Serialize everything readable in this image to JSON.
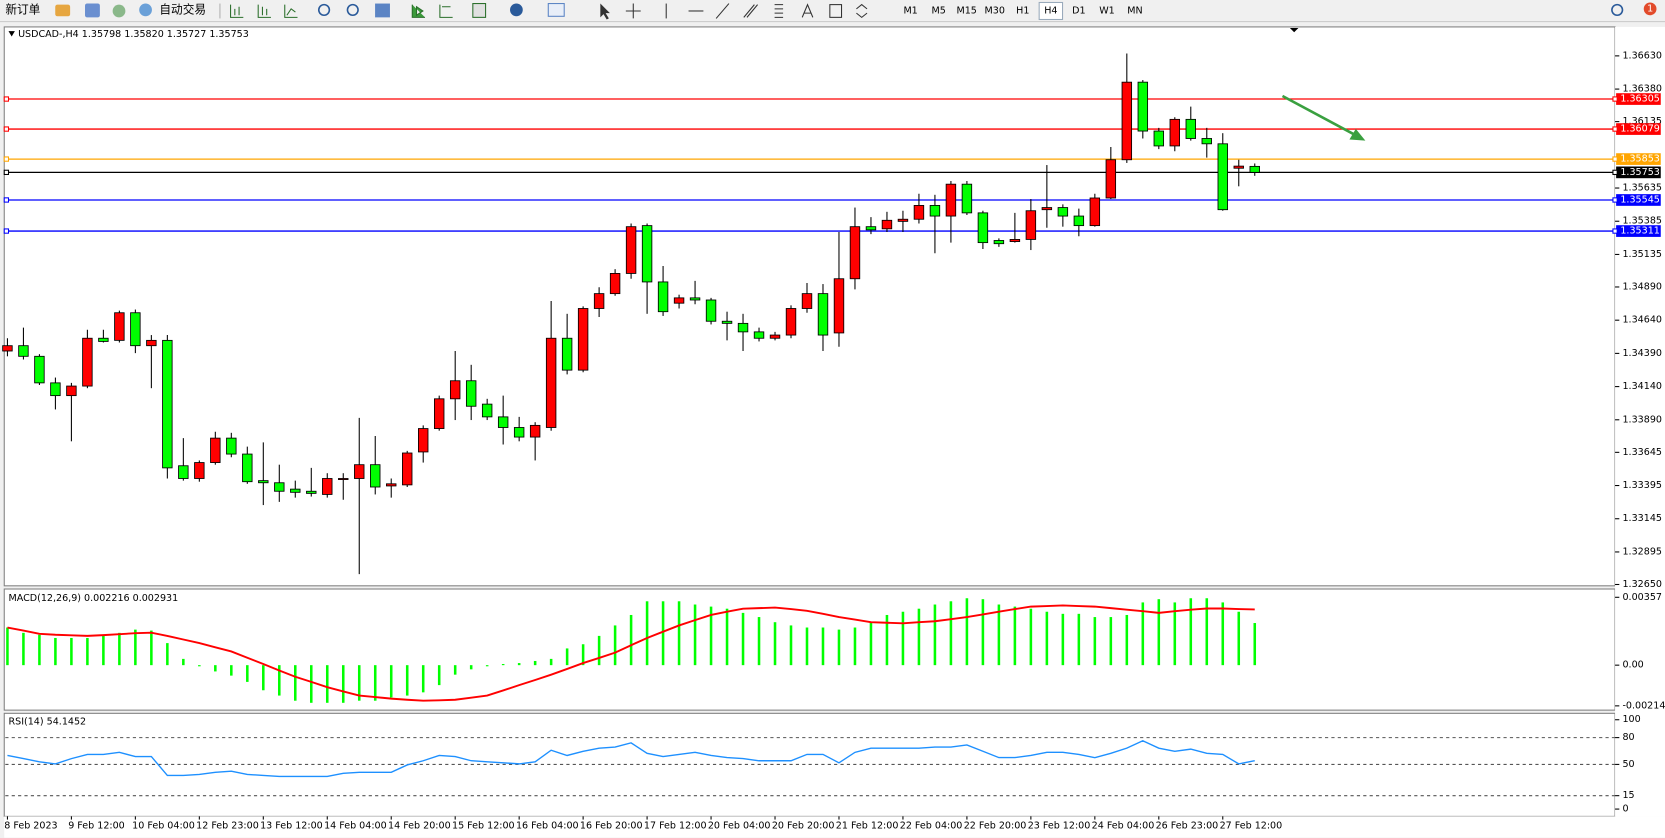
{
  "toolbar": {
    "new_order": "新订单",
    "auto_trading": "自动交易",
    "timeframes": [
      "M1",
      "M5",
      "M15",
      "M30",
      "H1",
      "H4",
      "D1",
      "W1",
      "MN"
    ],
    "selected": "H4",
    "notifications": "1"
  },
  "chart_data": [
    {
      "type": "candlestick",
      "title": "USDCAD-,H4  1.35798 1.35820 1.35727 1.35753",
      "categories": [
        "8 Feb 2023",
        null,
        null,
        null,
        "9 Feb 12:00",
        null,
        null,
        null,
        "10 Feb 04:00",
        null,
        null,
        null,
        "12 Feb 23:00",
        null,
        null,
        null,
        "13 Feb 12:00",
        null,
        null,
        null,
        "14 Feb 04:00",
        null,
        null,
        null,
        "14 Feb 20:00",
        null,
        null,
        null,
        "15 Feb 12:00",
        null,
        null,
        null,
        "16 Feb 04:00",
        null,
        null,
        null,
        "16 Feb 20:00",
        null,
        null,
        null,
        "17 Feb 12:00",
        null,
        null,
        null,
        "20 Feb 04:00",
        null,
        null,
        null,
        "20 Feb 20:00",
        null,
        null,
        null,
        "21 Feb 12:00",
        null,
        null,
        null,
        "22 Feb 04:00",
        null,
        null,
        null,
        "22 Feb 20:00",
        null,
        null,
        null,
        "23 Feb 12:00",
        null,
        null,
        null,
        "24 Feb 04:00",
        null,
        null,
        null,
        "26 Feb 23:00",
        null,
        null,
        null,
        "27 Feb 12:00",
        null,
        null
      ],
      "open": [
        1.34408,
        1.34448,
        1.34368,
        1.34168,
        1.34072,
        1.34144,
        1.34504,
        1.34488,
        1.34696,
        1.34448,
        1.34488,
        1.33544,
        1.33448,
        1.33568,
        1.33752,
        1.33632,
        1.33432,
        1.33416,
        1.33368,
        1.33352,
        1.33328,
        1.3344,
        1.33448,
        1.33552,
        1.33392,
        1.334,
        1.33648,
        1.33824,
        1.34048,
        1.34184,
        1.34008,
        1.33912,
        1.33832,
        1.3376,
        1.33832,
        1.34504,
        1.34264,
        1.34728,
        1.3484,
        1.34992,
        1.35352,
        1.34928,
        1.34768,
        1.34808,
        1.34792,
        1.34632,
        1.34616,
        1.34552,
        1.34504,
        1.34528,
        1.34728,
        1.3484,
        1.34544,
        1.34952,
        1.35344,
        1.35328,
        1.35384,
        1.354,
        1.35504,
        1.35424,
        1.35664,
        1.35448,
        1.3524,
        1.35232,
        1.35248,
        1.35472,
        1.35488,
        1.35424,
        1.35352,
        1.3556,
        1.35848,
        1.36432,
        1.36064,
        1.35952,
        1.36152,
        1.36008,
        1.35968,
        1.35784,
        1.35798
      ],
      "high": [
        1.34504,
        1.34584,
        1.34384,
        1.34208,
        1.34168,
        1.34568,
        1.34568,
        1.34712,
        1.3472,
        1.34528,
        1.34528,
        1.33752,
        1.33584,
        1.338,
        1.33792,
        1.33688,
        1.3372,
        1.33552,
        1.33432,
        1.33528,
        1.33488,
        1.33488,
        1.33904,
        1.33768,
        1.33448,
        1.33656,
        1.33848,
        1.34072,
        1.34408,
        1.34304,
        1.34048,
        1.34072,
        1.33912,
        1.33872,
        1.34784,
        1.34688,
        1.34744,
        1.34888,
        1.35024,
        1.35368,
        1.35368,
        1.35048,
        1.34832,
        1.34936,
        1.34808,
        1.34704,
        1.34688,
        1.34584,
        1.34552,
        1.34752,
        1.3492,
        1.34912,
        1.35304,
        1.35488,
        1.35416,
        1.35456,
        1.35464,
        1.35592,
        1.35584,
        1.35688,
        1.35688,
        1.35464,
        1.35256,
        1.35448,
        1.35552,
        1.35808,
        1.35512,
        1.3548,
        1.35592,
        1.35944,
        1.36648,
        1.36448,
        1.36088,
        1.36168,
        1.36248,
        1.36088,
        1.36048,
        1.35848,
        1.3582
      ],
      "low": [
        1.34368,
        1.34344,
        1.34152,
        1.33968,
        1.33728,
        1.34128,
        1.34472,
        1.34472,
        1.34392,
        1.34128,
        1.33448,
        1.33432,
        1.33424,
        1.33552,
        1.33608,
        1.33408,
        1.33248,
        1.33272,
        1.33304,
        1.33312,
        1.33304,
        1.33288,
        1.32728,
        1.33328,
        1.33304,
        1.33384,
        1.33568,
        1.33808,
        1.33888,
        1.33888,
        1.33888,
        1.33704,
        1.33728,
        1.33584,
        1.33808,
        1.34232,
        1.34248,
        1.34664,
        1.34824,
        1.34952,
        1.34688,
        1.34672,
        1.34728,
        1.3476,
        1.34608,
        1.34488,
        1.34408,
        1.3448,
        1.34488,
        1.34504,
        1.34696,
        1.34408,
        1.3444,
        1.34872,
        1.35288,
        1.35304,
        1.35304,
        1.35368,
        1.35144,
        1.35224,
        1.35432,
        1.35176,
        1.35192,
        1.35224,
        1.35168,
        1.35336,
        1.35344,
        1.35272,
        1.35344,
        1.35552,
        1.35824,
        1.36008,
        1.35928,
        1.35912,
        1.35992,
        1.35864,
        1.35464,
        1.35648,
        1.35727
      ],
      "close": [
        1.34448,
        1.34368,
        1.34168,
        1.34072,
        1.34144,
        1.34504,
        1.3448,
        1.34696,
        1.34448,
        1.34488,
        1.33528,
        1.33448,
        1.33568,
        1.33752,
        1.33632,
        1.33424,
        1.33416,
        1.33352,
        1.33344,
        1.33336,
        1.33448,
        1.33448,
        1.33552,
        1.33384,
        1.33408,
        1.3364,
        1.33824,
        1.34048,
        1.34184,
        1.33992,
        1.33912,
        1.33832,
        1.3376,
        1.33848,
        1.34504,
        1.34264,
        1.34728,
        1.3484,
        1.34992,
        1.35344,
        1.34928,
        1.34704,
        1.34808,
        1.34792,
        1.34632,
        1.34616,
        1.34552,
        1.34504,
        1.34528,
        1.34728,
        1.3484,
        1.34528,
        1.34952,
        1.35344,
        1.3532,
        1.35392,
        1.354,
        1.35504,
        1.35424,
        1.35664,
        1.35448,
        1.35224,
        1.35216,
        1.35248,
        1.35464,
        1.35488,
        1.35424,
        1.35352,
        1.3556,
        1.35848,
        1.36432,
        1.36064,
        1.35952,
        1.36152,
        1.36008,
        1.35968,
        1.35472,
        1.358,
        1.35753
      ],
      "up_color": "#ff0000",
      "down_color": "#00ff00",
      "ylim": [
        1.3264,
        1.3684
      ],
      "yticks": [
        {
          "value": 1.3663,
          "label": "1.36630"
        },
        {
          "value": 1.3638,
          "label": "1.36380"
        },
        1.36135,
        1.35635,
        1.35385,
        1.35135,
        {
          "value": 1.3489,
          "label": "1.34890"
        },
        {
          "value": 1.3464,
          "label": "1.34640"
        },
        {
          "value": 1.3439,
          "label": "1.34390"
        },
        {
          "value": 1.3414,
          "label": "1.34140"
        },
        {
          "value": 1.3389,
          "label": "1.33890"
        },
        1.33645,
        1.33395,
        1.33145,
        1.32895,
        {
          "value": 1.3265,
          "label": "1.32650"
        }
      ],
      "levels": [
        {
          "value": 1.36305,
          "color": "#ff0000"
        },
        {
          "value": 1.36079,
          "color": "#ff0000"
        },
        {
          "value": 1.35853,
          "color": "#ffa500"
        },
        {
          "value": 1.35753,
          "color": "#000000"
        },
        {
          "value": 1.35545,
          "color": "#0000ff"
        },
        {
          "value": 1.35311,
          "color": "#0000ff"
        }
      ]
    },
    {
      "type": "macd",
      "title": "MACD(12,26,9) 0.002216 0.002931",
      "series": [
        {
          "type": "bar",
          "color": "#00ff00",
          "values": [
            0.00198,
            0.0017,
            0.0016,
            0.00143,
            0.00143,
            0.00143,
            0.00154,
            0.0017,
            0.00187,
            0.00182,
            0.00116,
            0.00033,
            -6e-05,
            -0.00033,
            -0.00055,
            -0.00088,
            -0.00132,
            -0.0016,
            -0.00187,
            -0.00198,
            -0.00198,
            -0.00198,
            -0.00187,
            -0.00187,
            -0.0017,
            -0.0016,
            -0.00143,
            -0.00105,
            -0.0005,
            -0.00022,
            -6e-05,
            6e-05,
            0.00011,
            0.00022,
            0.00033,
            0.00088,
            0.0011,
            0.00154,
            0.00209,
            0.00264,
            0.00336,
            0.00336,
            0.00336,
            0.00319,
            0.00308,
            0.00297,
            0.00275,
            0.00253,
            0.00226,
            0.00209,
            0.00198,
            0.00198,
            0.00187,
            0.00198,
            0.00226,
            0.00264,
            0.00281,
            0.00297,
            0.00319,
            0.00336,
            0.00352,
            0.00347,
            0.00319,
            0.00308,
            0.00297,
            0.00281,
            0.0027,
            0.0027,
            0.00253,
            0.00253,
            0.00264,
            0.0033,
            0.00347,
            0.0033,
            0.00352,
            0.00352,
            0.0033,
            0.00281,
            0.002216
          ]
        },
        {
          "type": "line",
          "color": "#ff0000",
          "values": [
            0.00198,
            0.00182,
            0.00165,
            0.0016,
            0.00157,
            0.00154,
            0.00158,
            0.00163,
            0.00168,
            0.00171,
            0.00154,
            0.00135,
            0.00116,
            0.00094,
            0.00072,
            0.00039,
            6e-05,
            -0.00028,
            -0.00061,
            -0.00088,
            -0.00116,
            -0.00138,
            -0.0016,
            -0.00168,
            -0.00176,
            -0.00182,
            -0.00187,
            -0.00185,
            -0.00182,
            -0.00171,
            -0.0016,
            -0.00133,
            -0.00105,
            -0.00078,
            -0.0005,
            -0.0002,
            0.00011,
            0.00038,
            0.00066,
            0.00105,
            0.00143,
            0.00176,
            0.00209,
            0.00237,
            0.00264,
            0.00281,
            0.00297,
            0.003,
            0.00303,
            0.00295,
            0.00286,
            0.0027,
            0.00253,
            0.0024,
            0.00226,
            0.00223,
            0.0022,
            0.00226,
            0.00231,
            0.00242,
            0.00253,
            0.00267,
            0.00281,
            0.00295,
            0.00308,
            0.00311,
            0.00314,
            0.00311,
            0.00308,
            0.003,
            0.00292,
            0.00284,
            0.00275,
            0.00284,
            0.00292,
            0.00298,
            0.00298,
            0.00295,
            0.002931
          ]
        }
      ],
      "ylim": [
        -0.00231,
        0.00395
      ],
      "yticks": [
        0.00357,
        {
          "value": 0,
          "label": "0.00"
        },
        -0.002141
      ]
    },
    {
      "type": "line",
      "title": "RSI(14) 54.1452",
      "series": [
        {
          "color": "#1e90ff",
          "values": [
            60.0,
            56.5,
            52.9,
            50.6,
            56.5,
            61.2,
            61.2,
            63.5,
            58.8,
            58.8,
            37.6,
            37.6,
            38.8,
            41.2,
            42.4,
            38.8,
            37.6,
            36.5,
            36.5,
            36.5,
            36.5,
            40.0,
            41.2,
            41.2,
            41.2,
            49.4,
            54.1,
            60.0,
            58.8,
            54.1,
            52.9,
            51.8,
            50.6,
            52.9,
            65.9,
            60.0,
            64.7,
            68.2,
            69.4,
            74.1,
            62.4,
            58.8,
            61.2,
            63.5,
            60.0,
            57.6,
            56.5,
            54.1,
            54.1,
            54.1,
            61.2,
            61.2,
            51.8,
            63.5,
            68.2,
            68.2,
            68.2,
            68.2,
            69.4,
            69.4,
            71.8,
            64.7,
            57.6,
            57.6,
            60.0,
            63.5,
            63.5,
            61.2,
            57.6,
            62.4,
            68.2,
            76.5,
            68.2,
            64.7,
            67.1,
            62.4,
            61.2,
            50.6,
            54.1452
          ]
        }
      ],
      "ylim": [
        -7,
        106
      ],
      "yticks": [
        100,
        80,
        50,
        15,
        0
      ],
      "levels": [
        80,
        50,
        15
      ]
    }
  ]
}
